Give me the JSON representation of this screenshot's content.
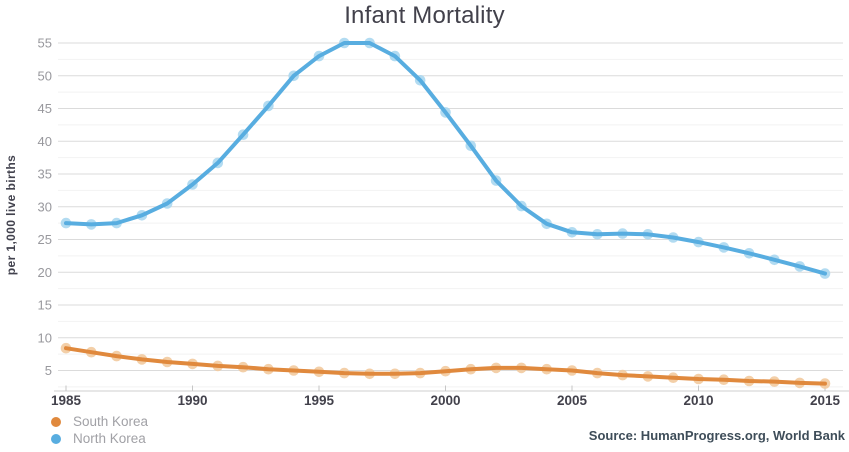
{
  "title": "Infant Mortality",
  "y_axis": {
    "label": "per 1,000 live births",
    "ticks": [
      55,
      50,
      45,
      40,
      35,
      30,
      25,
      20,
      15,
      10,
      5
    ]
  },
  "x_axis": {
    "ticks": [
      1985,
      1990,
      1995,
      2000,
      2005,
      2010,
      2015
    ]
  },
  "legend": {
    "items": [
      {
        "label": "South Korea",
        "color": "#e0893d"
      },
      {
        "label": "North Korea",
        "color": "#58ade0"
      }
    ]
  },
  "source": "Source: HumanProgress.org, World Bank",
  "colors": {
    "grid_major": "#dbdbdb",
    "grid_minor": "#f2f2f2",
    "axis_line": "#cfcfcf",
    "axis_tick": "#c6c6c6",
    "x_tick_text": "#42414b",
    "y_tick_text": "#98989d",
    "south_korea": "#e0893d",
    "south_korea_marker": "#f2ca9f",
    "north_korea": "#58ade0",
    "north_korea_marker": "#aad7ef"
  },
  "chart_data": {
    "type": "line",
    "title": "Infant Mortality",
    "xlabel": "",
    "ylabel": "per 1,000 live births",
    "xlim": [
      1985,
      2015
    ],
    "ylim": [
      2.5,
      55
    ],
    "grid": {
      "major_step": 5,
      "minor_step": 2.5,
      "on": true
    },
    "legend_position": "bottom-left",
    "x": [
      1985,
      1986,
      1987,
      1988,
      1989,
      1990,
      1991,
      1992,
      1993,
      1994,
      1995,
      1996,
      1997,
      1998,
      1999,
      2000,
      2001,
      2002,
      2003,
      2004,
      2005,
      2006,
      2007,
      2008,
      2009,
      2010,
      2011,
      2012,
      2013,
      2014,
      2015
    ],
    "series": [
      {
        "name": "South Korea",
        "color": "#e0893d",
        "marker_color": "#f2ca9f",
        "values": [
          8.4,
          7.8,
          7.2,
          6.7,
          6.3,
          6.0,
          5.7,
          5.5,
          5.2,
          5.0,
          4.8,
          4.6,
          4.5,
          4.5,
          4.6,
          4.9,
          5.2,
          5.4,
          5.4,
          5.2,
          5.0,
          4.6,
          4.3,
          4.1,
          3.9,
          3.7,
          3.6,
          3.4,
          3.3,
          3.1,
          3.0
        ]
      },
      {
        "name": "North Korea",
        "color": "#58ade0",
        "marker_color": "#aad7ef",
        "values": [
          27.5,
          27.3,
          27.5,
          28.7,
          30.5,
          33.4,
          36.7,
          41.0,
          45.4,
          50.0,
          53.0,
          55.0,
          55.0,
          53.0,
          49.3,
          44.4,
          39.3,
          34.0,
          30.1,
          27.4,
          26.1,
          25.8,
          25.9,
          25.8,
          25.3,
          24.6,
          23.8,
          22.9,
          21.9,
          20.9,
          19.8
        ]
      }
    ]
  }
}
